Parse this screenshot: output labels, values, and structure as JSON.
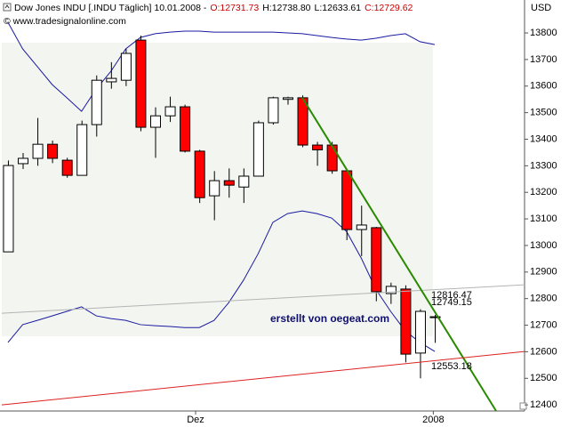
{
  "chart_data": {
    "type": "candlestick",
    "title_parts": [
      {
        "text": "Dow Jones INDU [.INDU Täglich] 10.01.2008 -",
        "color": "#000000"
      },
      {
        "text": "O:12731.73",
        "color": "#cc0000"
      },
      {
        "text": "H:12738.80",
        "color": "#000000"
      },
      {
        "text": "L:12633.61",
        "color": "#000000"
      },
      {
        "text": "C:12729.62",
        "color": "#cc0000"
      }
    ],
    "subtitle": "© www.tradesignalonline.com",
    "currency": "USD",
    "watermark": "erstellt von oegeat.com",
    "open": [
      12976,
      13308,
      13328,
      13381,
      13321,
      13264,
      13455,
      13616,
      13622,
      13773,
      13445,
      13488,
      13522,
      13355,
      13187,
      13244,
      13220,
      13261,
      13462,
      13550,
      13556,
      13378,
      13378,
      13281,
      13060,
      13067,
      12819,
      12836,
      12595,
      12731.73
    ],
    "high": [
      13320,
      13348,
      13480,
      13395,
      13330,
      13470,
      13640,
      13690,
      13740,
      13790,
      13520,
      13560,
      13530,
      13360,
      13280,
      13290,
      13290,
      13470,
      13560,
      13560,
      13565,
      13390,
      13390,
      13285,
      13150,
      13070,
      12860,
      12850,
      12760,
      12738.8
    ],
    "low": [
      12976,
      13288,
      13300,
      13310,
      13255,
      13264,
      13410,
      13590,
      13600,
      13430,
      13330,
      13465,
      13350,
      13160,
      13095,
      13180,
      13160,
      13261,
      13455,
      13530,
      13370,
      13300,
      13270,
      13020,
      12960,
      12790,
      12780,
      12560,
      12500,
      12633.61
    ],
    "close": [
      13301,
      13328,
      13381,
      13328,
      13264,
      13455,
      13622,
      13629,
      13723,
      13445,
      13488,
      13522,
      13355,
      13180,
      13244,
      13227,
      13261,
      13462,
      13556,
      13556,
      13378,
      13360,
      13281,
      13060,
      13077,
      12826,
      12846,
      12591,
      12752,
      12729.62
    ],
    "up_color": "#ffffff",
    "down_color": "#ff0000",
    "bands": [
      {
        "color": "#1a1aa0",
        "values": [
          13840,
          13740,
          13673,
          13606,
          13556,
          13505,
          13589,
          13656,
          13740,
          13783,
          13797,
          13803,
          13807,
          13807,
          13803,
          13803,
          13803,
          13803,
          13803,
          13800,
          13797,
          13790,
          13783,
          13777,
          13773,
          13780,
          13790,
          13797,
          13767,
          13756
        ]
      },
      {
        "color": "#1a1aa0",
        "values": [
          12635,
          12702,
          12718,
          12735,
          12752,
          12769,
          12735,
          12725,
          12718,
          12702,
          12698,
          12695,
          12691,
          12691,
          12718,
          12785,
          12869,
          12969,
          13087,
          13120,
          13130,
          13120,
          13103,
          13053,
          12953,
          12835,
          12752,
          12678,
          12635,
          12601
        ]
      }
    ],
    "lines": [
      {
        "color": "#b4b4b4",
        "x": [
          -0.42,
          35.1
        ],
        "values": [
          12745,
          12852
        ],
        "label": "12816.47"
      },
      {
        "color": "#2a8a00",
        "x": [
          20,
          33.17
        ],
        "values": [
          13556,
          12377
        ],
        "label": "12749.15"
      },
      {
        "color": "#dd2222",
        "x": [
          -0.42,
          35.1
        ],
        "values": [
          12400,
          12601
        ],
        "label": "12553.18"
      }
    ],
    "xlim": [
      -0.42,
      35.1
    ],
    "xticks": [
      {
        "value": 12.75,
        "label": "Dez"
      },
      {
        "value": 28.9,
        "label": "2008"
      }
    ],
    "ylim": [
      12377,
      13924
    ],
    "yticks": [
      12400,
      12500,
      12600,
      12700,
      12800,
      12900,
      13000,
      13100,
      13200,
      13300,
      13400,
      13500,
      13600,
      13700,
      13800
    ]
  }
}
